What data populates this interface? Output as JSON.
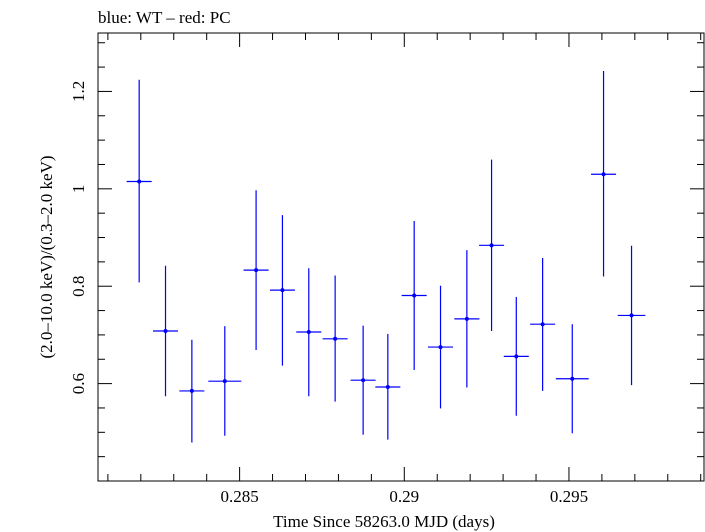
{
  "chart_data": {
    "type": "scatter",
    "title": "blue: WT – red: PC",
    "xlabel": "Time Since 58263.0 MJD (days)",
    "ylabel": "(2.0–10.0 keV)/(0.3–2.0 keV)",
    "xlim": [
      0.2807,
      0.2991
    ],
    "ylim": [
      0.4,
      1.32
    ],
    "x_ticks": [
      0.285,
      0.29,
      0.295
    ],
    "x_tick_labels": [
      "0.285",
      "0.29",
      "0.295"
    ],
    "y_ticks": [
      0.6,
      0.8,
      1.0,
      1.2
    ],
    "y_tick_labels": [
      "0.6",
      "0.8",
      "1",
      "1.2"
    ],
    "grid": false,
    "series_color": "#0000ff",
    "points": [
      {
        "x": 0.28195,
        "xerr": 0.00038,
        "y": 1.015,
        "ylo": 0.808,
        "yhi": 1.224
      },
      {
        "x": 0.28275,
        "xerr": 0.00038,
        "y": 0.708,
        "ylo": 0.574,
        "yhi": 0.842
      },
      {
        "x": 0.28355,
        "xerr": 0.00038,
        "y": 0.585,
        "ylo": 0.479,
        "yhi": 0.69
      },
      {
        "x": 0.28455,
        "xerr": 0.0005,
        "y": 0.605,
        "ylo": 0.493,
        "yhi": 0.718
      },
      {
        "x": 0.2855,
        "xerr": 0.00038,
        "y": 0.833,
        "ylo": 0.669,
        "yhi": 0.997
      },
      {
        "x": 0.2863,
        "xerr": 0.00038,
        "y": 0.792,
        "ylo": 0.637,
        "yhi": 0.946
      },
      {
        "x": 0.2871,
        "xerr": 0.00038,
        "y": 0.706,
        "ylo": 0.574,
        "yhi": 0.837
      },
      {
        "x": 0.2879,
        "xerr": 0.00038,
        "y": 0.692,
        "ylo": 0.563,
        "yhi": 0.822
      },
      {
        "x": 0.28875,
        "xerr": 0.00038,
        "y": 0.607,
        "ylo": 0.495,
        "yhi": 0.719
      },
      {
        "x": 0.2895,
        "xerr": 0.00038,
        "y": 0.593,
        "ylo": 0.485,
        "yhi": 0.702
      },
      {
        "x": 0.2903,
        "xerr": 0.00038,
        "y": 0.781,
        "ylo": 0.628,
        "yhi": 0.934
      },
      {
        "x": 0.2911,
        "xerr": 0.00038,
        "y": 0.675,
        "ylo": 0.549,
        "yhi": 0.801
      },
      {
        "x": 0.2919,
        "xerr": 0.00038,
        "y": 0.733,
        "ylo": 0.592,
        "yhi": 0.874
      },
      {
        "x": 0.29265,
        "xerr": 0.00038,
        "y": 0.884,
        "ylo": 0.708,
        "yhi": 1.06
      },
      {
        "x": 0.2934,
        "xerr": 0.00038,
        "y": 0.656,
        "ylo": 0.534,
        "yhi": 0.778
      },
      {
        "x": 0.2942,
        "xerr": 0.00038,
        "y": 0.722,
        "ylo": 0.585,
        "yhi": 0.858
      },
      {
        "x": 0.2951,
        "xerr": 0.0005,
        "y": 0.61,
        "ylo": 0.498,
        "yhi": 0.722
      },
      {
        "x": 0.29605,
        "xerr": 0.00038,
        "y": 1.03,
        "ylo": 0.82,
        "yhi": 1.242
      },
      {
        "x": 0.2969,
        "xerr": 0.00042,
        "y": 0.74,
        "ylo": 0.597,
        "yhi": 0.883
      }
    ]
  }
}
